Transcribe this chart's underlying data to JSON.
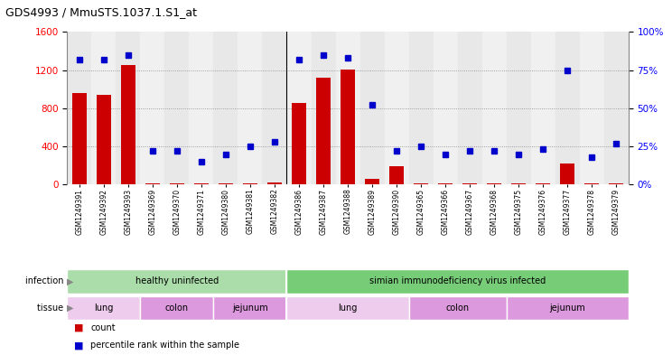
{
  "title": "GDS4993 / MmuSTS.1037.1.S1_at",
  "samples": [
    "GSM1249391",
    "GSM1249392",
    "GSM1249393",
    "GSM1249369",
    "GSM1249370",
    "GSM1249371",
    "GSM1249380",
    "GSM1249381",
    "GSM1249382",
    "GSM1249386",
    "GSM1249387",
    "GSM1249388",
    "GSM1249389",
    "GSM1249390",
    "GSM1249365",
    "GSM1249366",
    "GSM1249367",
    "GSM1249368",
    "GSM1249375",
    "GSM1249376",
    "GSM1249377",
    "GSM1249378",
    "GSM1249379"
  ],
  "counts": [
    960,
    940,
    1250,
    10,
    15,
    12,
    10,
    15,
    20,
    860,
    1120,
    1210,
    60,
    190,
    15,
    15,
    10,
    10,
    10,
    10,
    220,
    10,
    15
  ],
  "percentile": [
    82,
    82,
    85,
    22,
    22,
    15,
    20,
    25,
    28,
    82,
    85,
    83,
    52,
    22,
    25,
    20,
    22,
    22,
    20,
    23,
    75,
    18,
    27
  ],
  "ylim_left": [
    0,
    1600
  ],
  "ylim_right": [
    0,
    100
  ],
  "yticks_left": [
    0,
    400,
    800,
    1200,
    1600
  ],
  "yticks_right": [
    0,
    25,
    50,
    75,
    100
  ],
  "bar_color": "#cc0000",
  "dot_color": "#0000cc",
  "bg_color": "#ffffff",
  "col_even": "#e8e8e8",
  "col_odd": "#f0f0f0",
  "infection_groups": [
    {
      "label": "healthy uninfected",
      "start": 0,
      "end": 9,
      "color": "#aaddaa"
    },
    {
      "label": "simian immunodeficiency virus infected",
      "start": 9,
      "end": 23,
      "color": "#77cc77"
    }
  ],
  "tissue_groups": [
    {
      "label": "lung",
      "start": 0,
      "end": 3,
      "color": "#eebbee"
    },
    {
      "label": "colon",
      "start": 3,
      "end": 6,
      "color": "#dd99dd"
    },
    {
      "label": "jejunum",
      "start": 6,
      "end": 9,
      "color": "#dd99dd"
    },
    {
      "label": "lung",
      "start": 9,
      "end": 14,
      "color": "#eebbee"
    },
    {
      "label": "colon",
      "start": 14,
      "end": 18,
      "color": "#dd99dd"
    },
    {
      "label": "jejunum",
      "start": 18,
      "end": 23,
      "color": "#dd99dd"
    }
  ],
  "separator": 8.5,
  "legend_count_label": "count",
  "legend_pct_label": "percentile rank within the sample"
}
